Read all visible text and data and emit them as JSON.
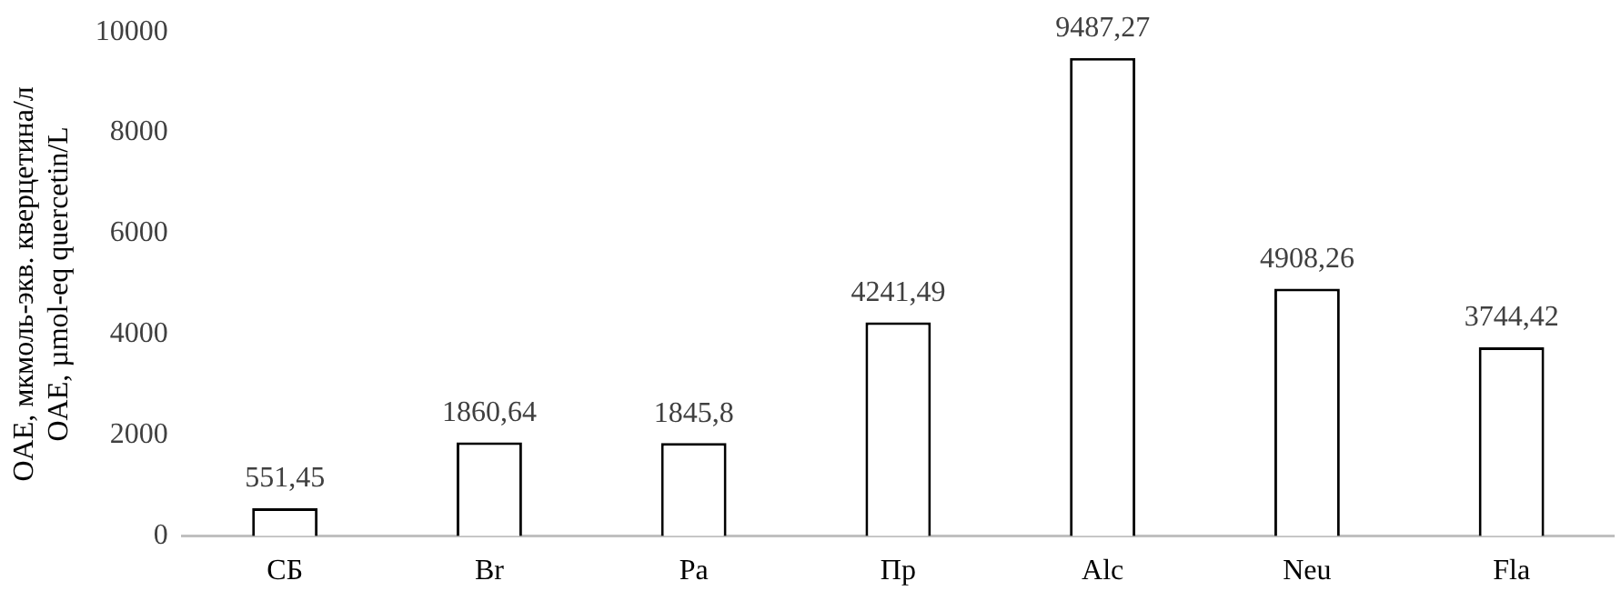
{
  "chart_data": {
    "type": "bar",
    "ylabel": "OAE, мкмоль-экв. кверцетина/л\nOAE, µmol-eq quercetin/L",
    "categories": [
      "СБ",
      "Br",
      "Pa",
      "Пр",
      "Alc",
      "Neu",
      "Fla"
    ],
    "values": [
      551.45,
      1860.64,
      1845.8,
      4241.49,
      9487.27,
      4908.26,
      3744.42
    ],
    "value_labels": [
      "551,45",
      "1860,64",
      "1845,8",
      "4241,49",
      "9487,27",
      "4908,26",
      "3744,42"
    ],
    "color": "#ffffff",
    "ylim": [
      0,
      10000
    ],
    "yticks": [
      0,
      2000,
      4000,
      6000,
      8000,
      10000
    ],
    "grid": false,
    "legend": false
  }
}
